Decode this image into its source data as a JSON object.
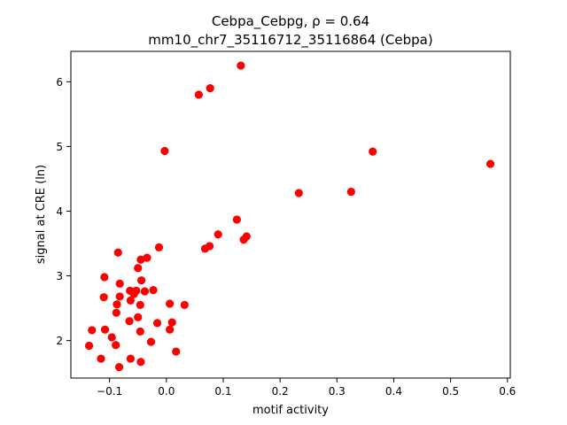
{
  "chart_data": {
    "type": "scatter",
    "title_line1": "Cebpa_Cebpg, ρ = 0.64",
    "title_line2": "mm10_chr7_35116712_35116864 (Cebpa)",
    "xlabel": "motif activity",
    "ylabel": "signal at CRE (ln)",
    "xlim": [
      -0.168,
      0.605
    ],
    "ylim": [
      1.42,
      6.47
    ],
    "xticks": [
      -0.1,
      0.0,
      0.1,
      0.2,
      0.3,
      0.4,
      0.5,
      0.6
    ],
    "xtick_labels": [
      "−0.1",
      "0.0",
      "0.1",
      "0.2",
      "0.3",
      "0.4",
      "0.5",
      "0.6"
    ],
    "yticks": [
      2,
      3,
      4,
      5,
      6
    ],
    "ytick_labels": [
      "2",
      "3",
      "4",
      "5",
      "6"
    ],
    "marker_color": "#ff0000",
    "grid": false,
    "points": [
      {
        "x": 0.131,
        "y": 6.25
      },
      {
        "x": 0.057,
        "y": 5.8
      },
      {
        "x": 0.077,
        "y": 5.9
      },
      {
        "x": -0.003,
        "y": 4.93
      },
      {
        "x": 0.363,
        "y": 4.92
      },
      {
        "x": 0.57,
        "y": 4.73
      },
      {
        "x": 0.233,
        "y": 4.28
      },
      {
        "x": 0.325,
        "y": 4.3
      },
      {
        "x": 0.124,
        "y": 3.87
      },
      {
        "x": 0.091,
        "y": 3.64
      },
      {
        "x": 0.136,
        "y": 3.56
      },
      {
        "x": 0.141,
        "y": 3.61
      },
      {
        "x": 0.068,
        "y": 3.42
      },
      {
        "x": 0.076,
        "y": 3.46
      },
      {
        "x": -0.013,
        "y": 3.44
      },
      {
        "x": -0.085,
        "y": 3.36
      },
      {
        "x": -0.034,
        "y": 3.28
      },
      {
        "x": -0.045,
        "y": 3.25
      },
      {
        "x": -0.05,
        "y": 3.12
      },
      {
        "x": -0.109,
        "y": 2.98
      },
      {
        "x": -0.044,
        "y": 2.93
      },
      {
        "x": -0.082,
        "y": 2.88
      },
      {
        "x": -0.064,
        "y": 2.77
      },
      {
        "x": -0.053,
        "y": 2.77
      },
      {
        "x": -0.038,
        "y": 2.76
      },
      {
        "x": -0.023,
        "y": 2.78
      },
      {
        "x": -0.057,
        "y": 2.72
      },
      {
        "x": -0.082,
        "y": 2.68
      },
      {
        "x": -0.11,
        "y": 2.67
      },
      {
        "x": -0.063,
        "y": 2.62
      },
      {
        "x": -0.087,
        "y": 2.56
      },
      {
        "x": -0.046,
        "y": 2.55
      },
      {
        "x": 0.006,
        "y": 2.57
      },
      {
        "x": 0.032,
        "y": 2.55
      },
      {
        "x": -0.088,
        "y": 2.43
      },
      {
        "x": -0.05,
        "y": 2.36
      },
      {
        "x": -0.065,
        "y": 2.3
      },
      {
        "x": -0.016,
        "y": 2.27
      },
      {
        "x": 0.01,
        "y": 2.28
      },
      {
        "x": 0.006,
        "y": 2.17
      },
      {
        "x": -0.131,
        "y": 2.16
      },
      {
        "x": -0.108,
        "y": 2.17
      },
      {
        "x": -0.046,
        "y": 2.14
      },
      {
        "x": -0.096,
        "y": 2.05
      },
      {
        "x": -0.027,
        "y": 1.98
      },
      {
        "x": -0.136,
        "y": 1.92
      },
      {
        "x": -0.089,
        "y": 1.93
      },
      {
        "x": 0.017,
        "y": 1.83
      },
      {
        "x": -0.115,
        "y": 1.72
      },
      {
        "x": -0.063,
        "y": 1.72
      },
      {
        "x": -0.045,
        "y": 1.67
      },
      {
        "x": -0.083,
        "y": 1.59
      }
    ]
  }
}
